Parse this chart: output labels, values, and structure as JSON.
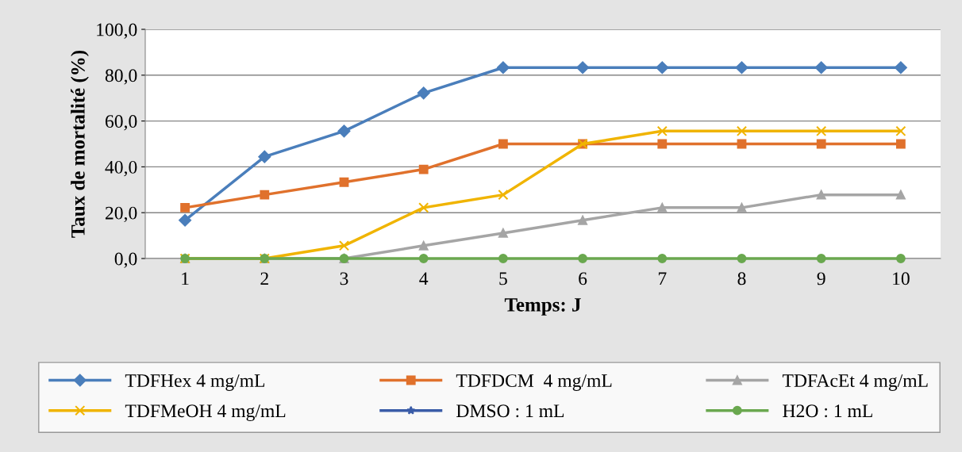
{
  "chart_data": {
    "type": "line",
    "xlabel": "Temps: J",
    "ylabel": "Taux de mortalité (%)",
    "categories": [
      "1",
      "2",
      "3",
      "4",
      "5",
      "6",
      "7",
      "8",
      "9",
      "10"
    ],
    "series": [
      {
        "name": "TDFHex 4 mg/mL",
        "color": "#4a7ebb",
        "marker": "diamond",
        "values": [
          16.7,
          44.4,
          55.6,
          72.2,
          83.3,
          83.3,
          83.3,
          83.3,
          83.3,
          83.3
        ]
      },
      {
        "name": "TDFDCM  4 mg/mL",
        "color": "#e0712c",
        "marker": "square",
        "values": [
          22.2,
          27.8,
          33.3,
          38.9,
          50.0,
          50.0,
          50.0,
          50.0,
          50.0,
          50.0
        ]
      },
      {
        "name": "TDFAcEt 4 mg/mL",
        "color": "#a5a5a5",
        "marker": "triangle",
        "values": [
          0,
          0,
          0,
          5.6,
          11.1,
          16.7,
          22.2,
          22.2,
          27.8,
          27.8
        ]
      },
      {
        "name": "TDFMeOH 4 mg/mL",
        "color": "#f0b400",
        "marker": "cross",
        "values": [
          0,
          0,
          5.6,
          22.2,
          27.8,
          50.0,
          55.6,
          55.6,
          55.6,
          55.6
        ]
      },
      {
        "name": "DMSO : 1 mL",
        "color": "#3a5ca8",
        "marker": "star",
        "values": [
          null,
          null,
          null,
          null,
          null,
          null,
          null,
          null,
          null,
          null
        ]
      },
      {
        "name": "H2O : 1 mL",
        "color": "#6aa84f",
        "marker": "circle",
        "values": [
          0,
          0,
          0,
          0,
          0,
          0,
          0,
          0,
          0,
          0
        ]
      }
    ],
    "ylim": [
      0,
      100
    ],
    "yticks": [
      {
        "value": 0,
        "label": "0,0"
      },
      {
        "value": 20,
        "label": "20,0"
      },
      {
        "value": 40,
        "label": "40,0"
      },
      {
        "value": 60,
        "label": "60,0"
      },
      {
        "value": 80,
        "label": "80,0"
      },
      {
        "value": 100,
        "label": "100,0"
      }
    ],
    "grid": "y",
    "legend": "bottom",
    "line_style": "solid"
  }
}
